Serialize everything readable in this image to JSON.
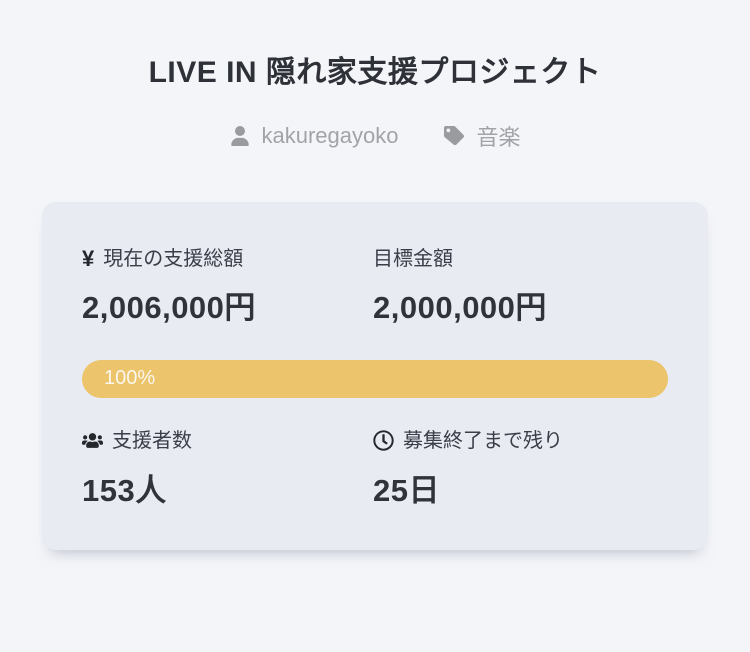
{
  "header": {
    "title": "LIVE IN 隠れ家支援プロジェクト",
    "author": "kakuregayoko",
    "category": "音楽"
  },
  "card": {
    "current": {
      "prefix": "¥",
      "label": "現在の支援総額",
      "value": "2,006,000円"
    },
    "goal": {
      "label": "目標金額",
      "value": "2,000,000円"
    },
    "progress": {
      "percent": 100,
      "label": "100%"
    },
    "supporters": {
      "label": "支援者数",
      "value": "153人"
    },
    "remaining": {
      "label": "募集終了まで残り",
      "value": "25日"
    }
  },
  "icons": {
    "author": "user-icon",
    "category": "tag-icon",
    "current": "yen-icon",
    "supporters": "users-icon",
    "remaining": "clock-icon"
  },
  "colors": {
    "page_bg": "#f4f5f9",
    "card_bg": "#e8ebf2",
    "progress_gold": "#ecc46b",
    "text_dark": "#303339",
    "text_gray": "#a2a3a8"
  }
}
